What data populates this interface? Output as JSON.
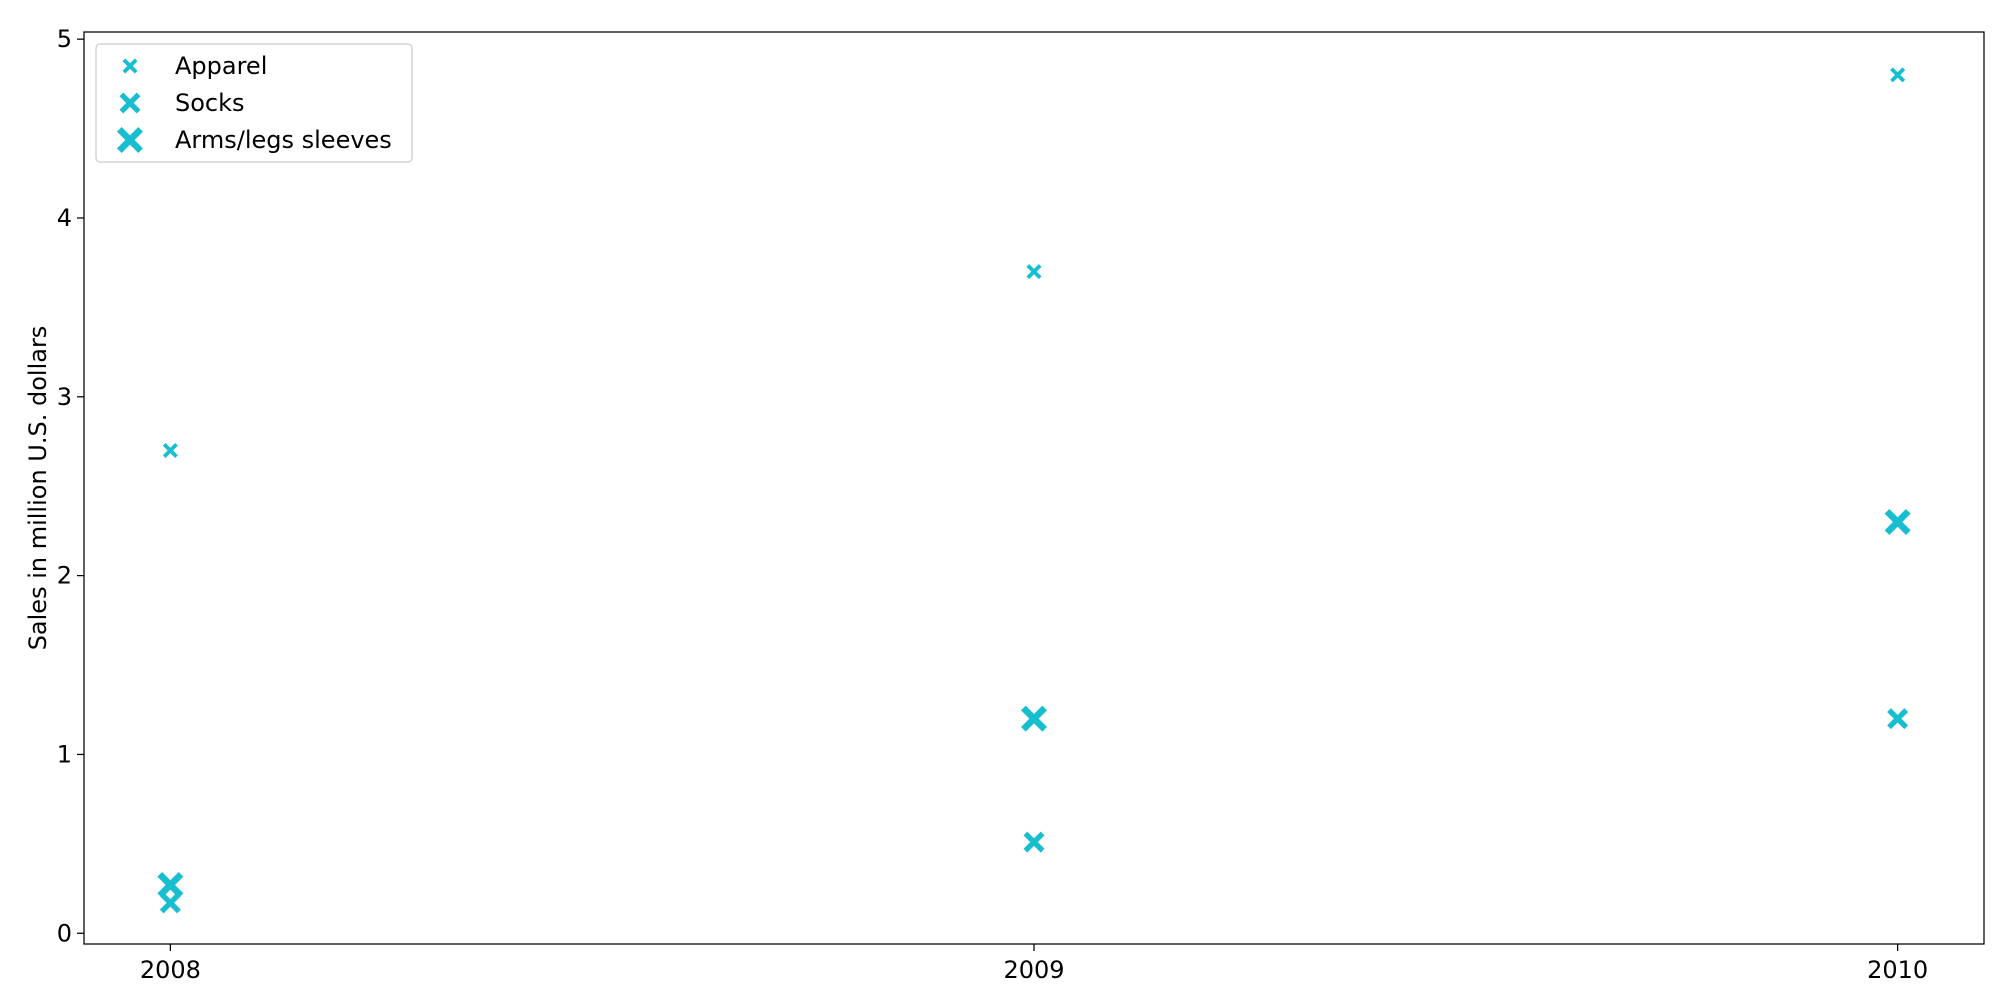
{
  "chart_data": {
    "type": "scatter",
    "title": "",
    "xlabel": "",
    "ylabel": "Sales in million U.S. dollars",
    "x_ticks": [
      "2008",
      "2009",
      "2010"
    ],
    "y_ticks": [
      "0",
      "1",
      "2",
      "3",
      "4",
      "5"
    ],
    "xlim": [
      2007.9,
      2010.1
    ],
    "ylim": [
      -0.06,
      5.04
    ],
    "grid": false,
    "legend_position": "top-left",
    "marker": "x-filled",
    "color": "#17becf",
    "series": [
      {
        "name": "Apparel",
        "marker_size": "small",
        "x": [
          2008,
          2009,
          2010
        ],
        "y": [
          2.7,
          3.7,
          4.8
        ]
      },
      {
        "name": "Socks",
        "marker_size": "medium",
        "x": [
          2008,
          2009,
          2010
        ],
        "y": [
          0.17,
          0.51,
          1.2
        ]
      },
      {
        "name": "Arms/legs sleeves",
        "marker_size": "large",
        "x": [
          2008,
          2009,
          2010
        ],
        "y": [
          0.27,
          1.2,
          2.3
        ]
      }
    ]
  }
}
